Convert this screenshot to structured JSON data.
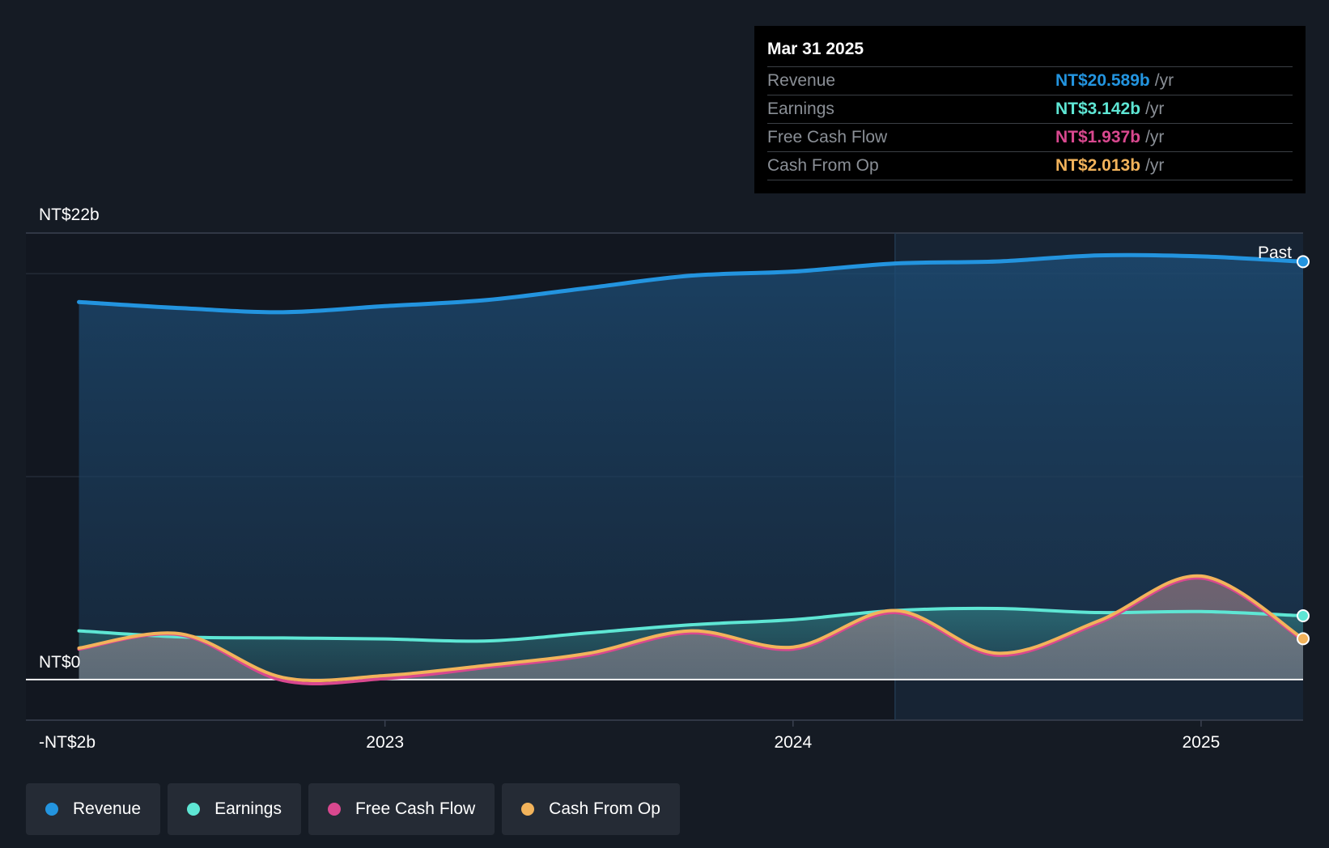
{
  "tooltip": {
    "date": "Mar 31 2025",
    "rows": [
      {
        "label": "Revenue",
        "value": "NT$20.589b",
        "unit": "/yr",
        "color": "#2394df"
      },
      {
        "label": "Earnings",
        "value": "NT$3.142b",
        "unit": "/yr",
        "color": "#5ee6d4"
      },
      {
        "label": "Free Cash Flow",
        "value": "NT$1.937b",
        "unit": "/yr",
        "color": "#d9488f"
      },
      {
        "label": "Cash From Op",
        "value": "NT$2.013b",
        "unit": "/yr",
        "color": "#f2b35b"
      }
    ]
  },
  "legend": [
    {
      "label": "Revenue",
      "color": "#2394df"
    },
    {
      "label": "Earnings",
      "color": "#5ee6d4"
    },
    {
      "label": "Free Cash Flow",
      "color": "#d9488f"
    },
    {
      "label": "Cash From Op",
      "color": "#f2b35b"
    }
  ],
  "chart_data": {
    "type": "line",
    "y_tick_labels": [
      {
        "label": "NT$22b",
        "value": 22
      },
      {
        "label": "NT$0",
        "value": 0
      },
      {
        "label": "-NT$2b",
        "value": -2
      }
    ],
    "x_tick_labels": [
      {
        "label": "2023",
        "value": 2023.0
      },
      {
        "label": "2024",
        "value": 2024.0
      },
      {
        "label": "2025",
        "value": 2025.0
      }
    ],
    "past_label": "Past",
    "past_start": 2024.25,
    "ylim": [
      -2,
      22
    ],
    "xlim": [
      2022.12,
      2025.25
    ],
    "series": [
      {
        "name": "Revenue",
        "color": "#2394df",
        "x": [
          2022.25,
          2022.5,
          2022.75,
          2023.0,
          2023.25,
          2023.5,
          2023.75,
          2024.0,
          2024.25,
          2024.5,
          2024.75,
          2025.0,
          2025.25
        ],
        "y": [
          18.6,
          18.3,
          18.1,
          18.4,
          18.7,
          19.3,
          19.9,
          20.1,
          20.5,
          20.6,
          20.9,
          20.85,
          20.589
        ]
      },
      {
        "name": "Earnings",
        "color": "#5ee6d4",
        "x": [
          2022.25,
          2022.5,
          2022.75,
          2023.0,
          2023.25,
          2023.5,
          2023.75,
          2024.0,
          2024.25,
          2024.5,
          2024.75,
          2025.0,
          2025.25
        ],
        "y": [
          2.4,
          2.1,
          2.05,
          2.0,
          1.9,
          2.3,
          2.7,
          2.95,
          3.4,
          3.5,
          3.3,
          3.35,
          3.142
        ]
      },
      {
        "name": "Free Cash Flow",
        "color": "#d9488f",
        "x": [
          2022.25,
          2022.5,
          2022.75,
          2023.0,
          2023.25,
          2023.5,
          2023.75,
          2024.0,
          2024.25,
          2024.5,
          2024.75,
          2025.0,
          2025.25
        ],
        "y": [
          1.5,
          2.2,
          -0.05,
          0.05,
          0.6,
          1.2,
          2.3,
          1.5,
          3.3,
          1.2,
          2.8,
          5.0,
          1.937
        ]
      },
      {
        "name": "Cash From Op",
        "color": "#f2b35b",
        "x": [
          2022.25,
          2022.5,
          2022.75,
          2023.0,
          2023.25,
          2023.5,
          2023.75,
          2024.0,
          2024.25,
          2024.5,
          2024.75,
          2025.0,
          2025.25
        ],
        "y": [
          1.55,
          2.25,
          0.1,
          0.2,
          0.7,
          1.3,
          2.4,
          1.6,
          3.4,
          1.3,
          2.9,
          5.1,
          2.013
        ]
      }
    ]
  }
}
